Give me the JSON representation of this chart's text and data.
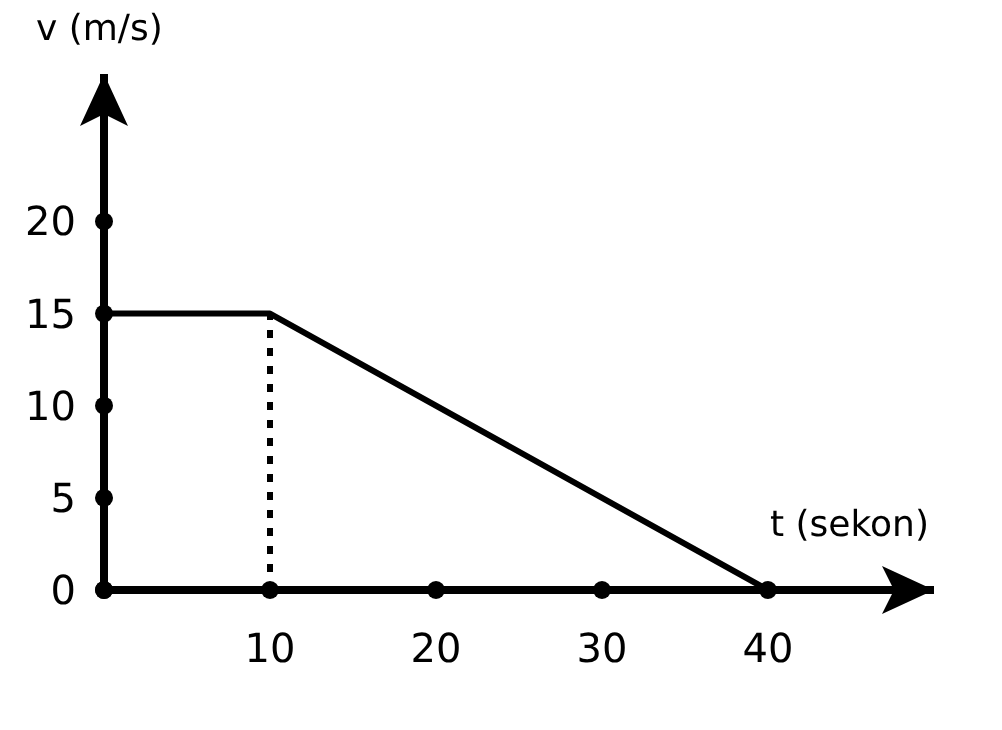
{
  "chart_data": {
    "type": "line",
    "xlabel": "t (sekon)",
    "ylabel": "v (m/s)",
    "xlim": [
      0,
      50
    ],
    "ylim": [
      0,
      28
    ],
    "xticks": [
      {
        "value": 0,
        "label": null
      },
      10,
      20,
      30,
      40
    ],
    "yticks": [
      0,
      5,
      10,
      15,
      20
    ],
    "grid": false,
    "marker": "none",
    "series": [
      {
        "color": "#000000",
        "x": [
          0,
          10,
          40
        ],
        "values": [
          15,
          15,
          0
        ],
        "line_style": "solid"
      },
      {
        "color": "#000000",
        "x": [
          10,
          10
        ],
        "values": [
          0,
          15
        ],
        "line_style": "dotted"
      }
    ]
  }
}
